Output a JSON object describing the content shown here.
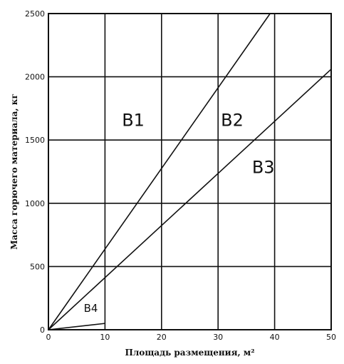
{
  "chart_data": {
    "type": "line",
    "xlabel": "Площадь размещения, м²",
    "ylabel": "Масса горючего материала, кг",
    "xlim": [
      0,
      50
    ],
    "ylim": [
      0,
      2500
    ],
    "x_ticks": [
      0,
      10,
      20,
      30,
      40,
      50
    ],
    "y_ticks": [
      0,
      500,
      1000,
      1500,
      2000,
      2500
    ],
    "grid": true,
    "series": [
      {
        "x": [
          0,
          39.2
        ],
        "y": [
          0,
          2500
        ]
      },
      {
        "x": [
          0,
          50
        ],
        "y": [
          0,
          2060
        ]
      },
      {
        "x": [
          0,
          10
        ],
        "y": [
          0,
          50
        ]
      }
    ],
    "annotations": [
      {
        "text": "В1",
        "x": 15,
        "y": 1610
      },
      {
        "text": "В2",
        "x": 32.5,
        "y": 1610
      },
      {
        "text": "В3",
        "x": 38,
        "y": 1240
      },
      {
        "text": "В4",
        "x": 7.5,
        "y": 140
      }
    ]
  }
}
